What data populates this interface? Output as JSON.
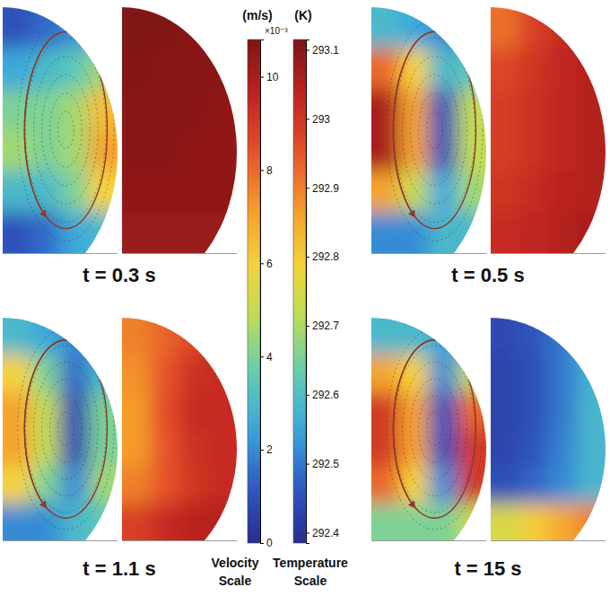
{
  "chart_data": {
    "type": "field",
    "panels": [
      {
        "label": "t = 0.3 s",
        "velocity": [
          [
            1.0,
            1.5,
            2.0,
            2.5
          ],
          [
            2.5,
            3.0,
            3.5,
            4.5
          ],
          [
            4.0,
            4.0,
            4.5,
            6.5
          ],
          [
            4.5,
            4.0,
            4.5,
            7.0
          ],
          [
            3.0,
            3.0,
            4.0,
            6.0
          ],
          [
            1.0,
            1.5,
            2.5,
            3.0
          ]
        ],
        "temperature": [
          [
            293.11,
            293.11,
            293.1,
            293.1
          ],
          [
            293.11,
            293.1,
            293.1,
            293.1
          ],
          [
            293.1,
            293.1,
            293.1,
            293.09
          ],
          [
            293.1,
            293.1,
            293.09,
            293.09
          ],
          [
            293.09,
            293.09,
            293.09,
            293.09
          ],
          [
            293.08,
            293.08,
            293.08,
            293.08
          ]
        ]
      },
      {
        "label": "t = 0.5 s",
        "velocity": [
          [
            3.0,
            2.5,
            2.0,
            1.5
          ],
          [
            8.0,
            6.0,
            3.0,
            3.5
          ],
          [
            10.0,
            7.0,
            1.0,
            5.0
          ],
          [
            10.0,
            7.0,
            1.0,
            5.0
          ],
          [
            7.0,
            5.0,
            2.5,
            4.5
          ],
          [
            2.0,
            2.0,
            3.0,
            3.0
          ]
        ],
        "temperature": [
          [
            292.92,
            292.98,
            293.02,
            293.04
          ],
          [
            292.97,
            293.0,
            293.03,
            293.05
          ],
          [
            292.99,
            293.01,
            293.03,
            293.05
          ],
          [
            292.99,
            293.01,
            293.03,
            293.05
          ],
          [
            293.0,
            293.02,
            293.04,
            293.05
          ],
          [
            293.02,
            293.03,
            293.05,
            293.06
          ]
        ]
      },
      {
        "label": "t = 1.1 s",
        "velocity": [
          [
            3.0,
            2.5,
            2.0,
            2.0
          ],
          [
            6.0,
            4.0,
            1.5,
            3.0
          ],
          [
            7.0,
            5.0,
            0.8,
            4.0
          ],
          [
            7.0,
            5.0,
            0.8,
            4.0
          ],
          [
            6.0,
            4.0,
            2.0,
            4.5
          ],
          [
            2.0,
            2.0,
            3.0,
            3.5
          ]
        ],
        "temperature": [
          [
            292.9,
            292.93,
            292.97,
            293.0
          ],
          [
            292.88,
            292.95,
            293.01,
            293.02
          ],
          [
            292.87,
            292.96,
            293.02,
            293.02
          ],
          [
            292.87,
            292.95,
            293.01,
            293.02
          ],
          [
            292.9,
            292.95,
            293.0,
            293.02
          ],
          [
            292.98,
            293.02,
            293.04,
            293.05
          ]
        ]
      },
      {
        "label": "t = 15 s",
        "velocity": [
          [
            3.0,
            3.0,
            2.5,
            2.0
          ],
          [
            7.0,
            6.0,
            2.0,
            5.0
          ],
          [
            9.0,
            7.0,
            1.0,
            8.0
          ],
          [
            9.0,
            7.0,
            1.0,
            9.0
          ],
          [
            8.0,
            6.0,
            2.0,
            9.0
          ],
          [
            4.0,
            4.0,
            4.0,
            5.0
          ]
        ],
        "temperature": [
          [
            292.44,
            292.46,
            292.5,
            292.55
          ],
          [
            292.43,
            292.45,
            292.5,
            292.57
          ],
          [
            292.43,
            292.45,
            292.5,
            292.58
          ],
          [
            292.43,
            292.46,
            292.51,
            292.58
          ],
          [
            292.45,
            292.48,
            292.52,
            292.58
          ],
          [
            292.75,
            292.8,
            292.85,
            292.9
          ]
        ]
      }
    ],
    "velocity_scale": {
      "unit": "(m/s)",
      "multiplier": "×10⁻³",
      "caption": [
        "Velocity",
        "Scale"
      ],
      "range": [
        0,
        10.8
      ],
      "ticks": [
        0,
        2,
        4,
        6,
        8,
        10
      ]
    },
    "temperature_scale": {
      "unit": "(K)",
      "caption": [
        "Temperature",
        "Scale"
      ],
      "range": [
        292.385,
        293.115
      ],
      "ticks": [
        292.4,
        292.5,
        292.6,
        292.7,
        292.8,
        292.9,
        293,
        293.1
      ]
    }
  }
}
